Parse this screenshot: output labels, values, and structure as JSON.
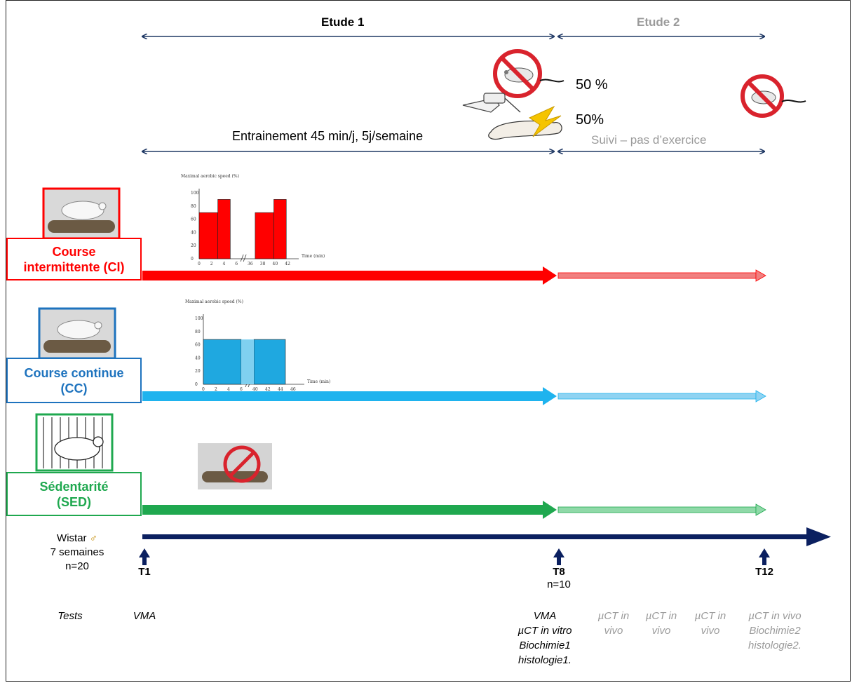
{
  "studies": {
    "etude1": "Etude 1",
    "etude2": "Etude 2"
  },
  "training": {
    "label": "Entrainement 45 min/j, 5j/semaine",
    "followup": "Suivi – pas d’exercice"
  },
  "outcomes": {
    "pct_top": "50 %",
    "pct_bottom": "50%"
  },
  "groups": [
    {
      "label_line1": "Course",
      "label_line2": "intermittente (CI)",
      "color": "#ff0000",
      "light_color": "#f08080"
    },
    {
      "label_line1": "Course continue",
      "label_line2": "(CC)",
      "color": "#1e73be",
      "light_color": "#8fd3f2"
    },
    {
      "label_line1": "Sédentarité",
      "label_line2": "(SED)",
      "color": "#1fa84f",
      "light_color": "#8fd9a8"
    }
  ],
  "animals": {
    "line1": "Wistar",
    "line2": "7 semaines",
    "line3": "n=20",
    "sex_icon": "male-symbol-icon"
  },
  "timepoints": {
    "t1": "T1",
    "t8": "T8",
    "t8_n": "n=10",
    "t12": "T12"
  },
  "tests": {
    "label": "Tests",
    "t1": "VMA",
    "t8": [
      "VMA",
      "µCT in vitro",
      "Biochimie1",
      "histologie1."
    ],
    "mid1": [
      "µCT in",
      "vivo"
    ],
    "mid2": [
      "µCT in",
      "vivo"
    ],
    "mid3": [
      "µCT in",
      "vivo"
    ],
    "t12": [
      "µCT in vivo",
      "Biochimie2",
      "histologie2."
    ]
  },
  "charts": {
    "ci": {
      "ylabel": "Maximal aerobic speed (%)",
      "xlabel": "Time (min)",
      "yticks": [
        "0",
        "20",
        "40",
        "60",
        "80",
        "100"
      ],
      "xticks": [
        "0",
        "2",
        "4",
        "6",
        "36",
        "38",
        "40",
        "42"
      ],
      "bar_color": "#ff0000",
      "bars": [
        {
          "from_min": 0,
          "to_min": 3,
          "value": 70
        },
        {
          "from_min": 3,
          "to_min": 5,
          "value": 90
        },
        {
          "from_min": 37,
          "to_min": 40,
          "value": 70
        },
        {
          "from_min": 40,
          "to_min": 42,
          "value": 90
        }
      ]
    },
    "cc": {
      "ylabel": "Maximal aerobic speed (%)",
      "xlabel": "Time (min)",
      "yticks": [
        "0",
        "20",
        "40",
        "60",
        "80",
        "100"
      ],
      "xticks": [
        "0",
        "2",
        "4",
        "6",
        "40",
        "42",
        "44",
        "46"
      ],
      "bar_color": "#1fa8e0",
      "value": 68
    }
  }
}
